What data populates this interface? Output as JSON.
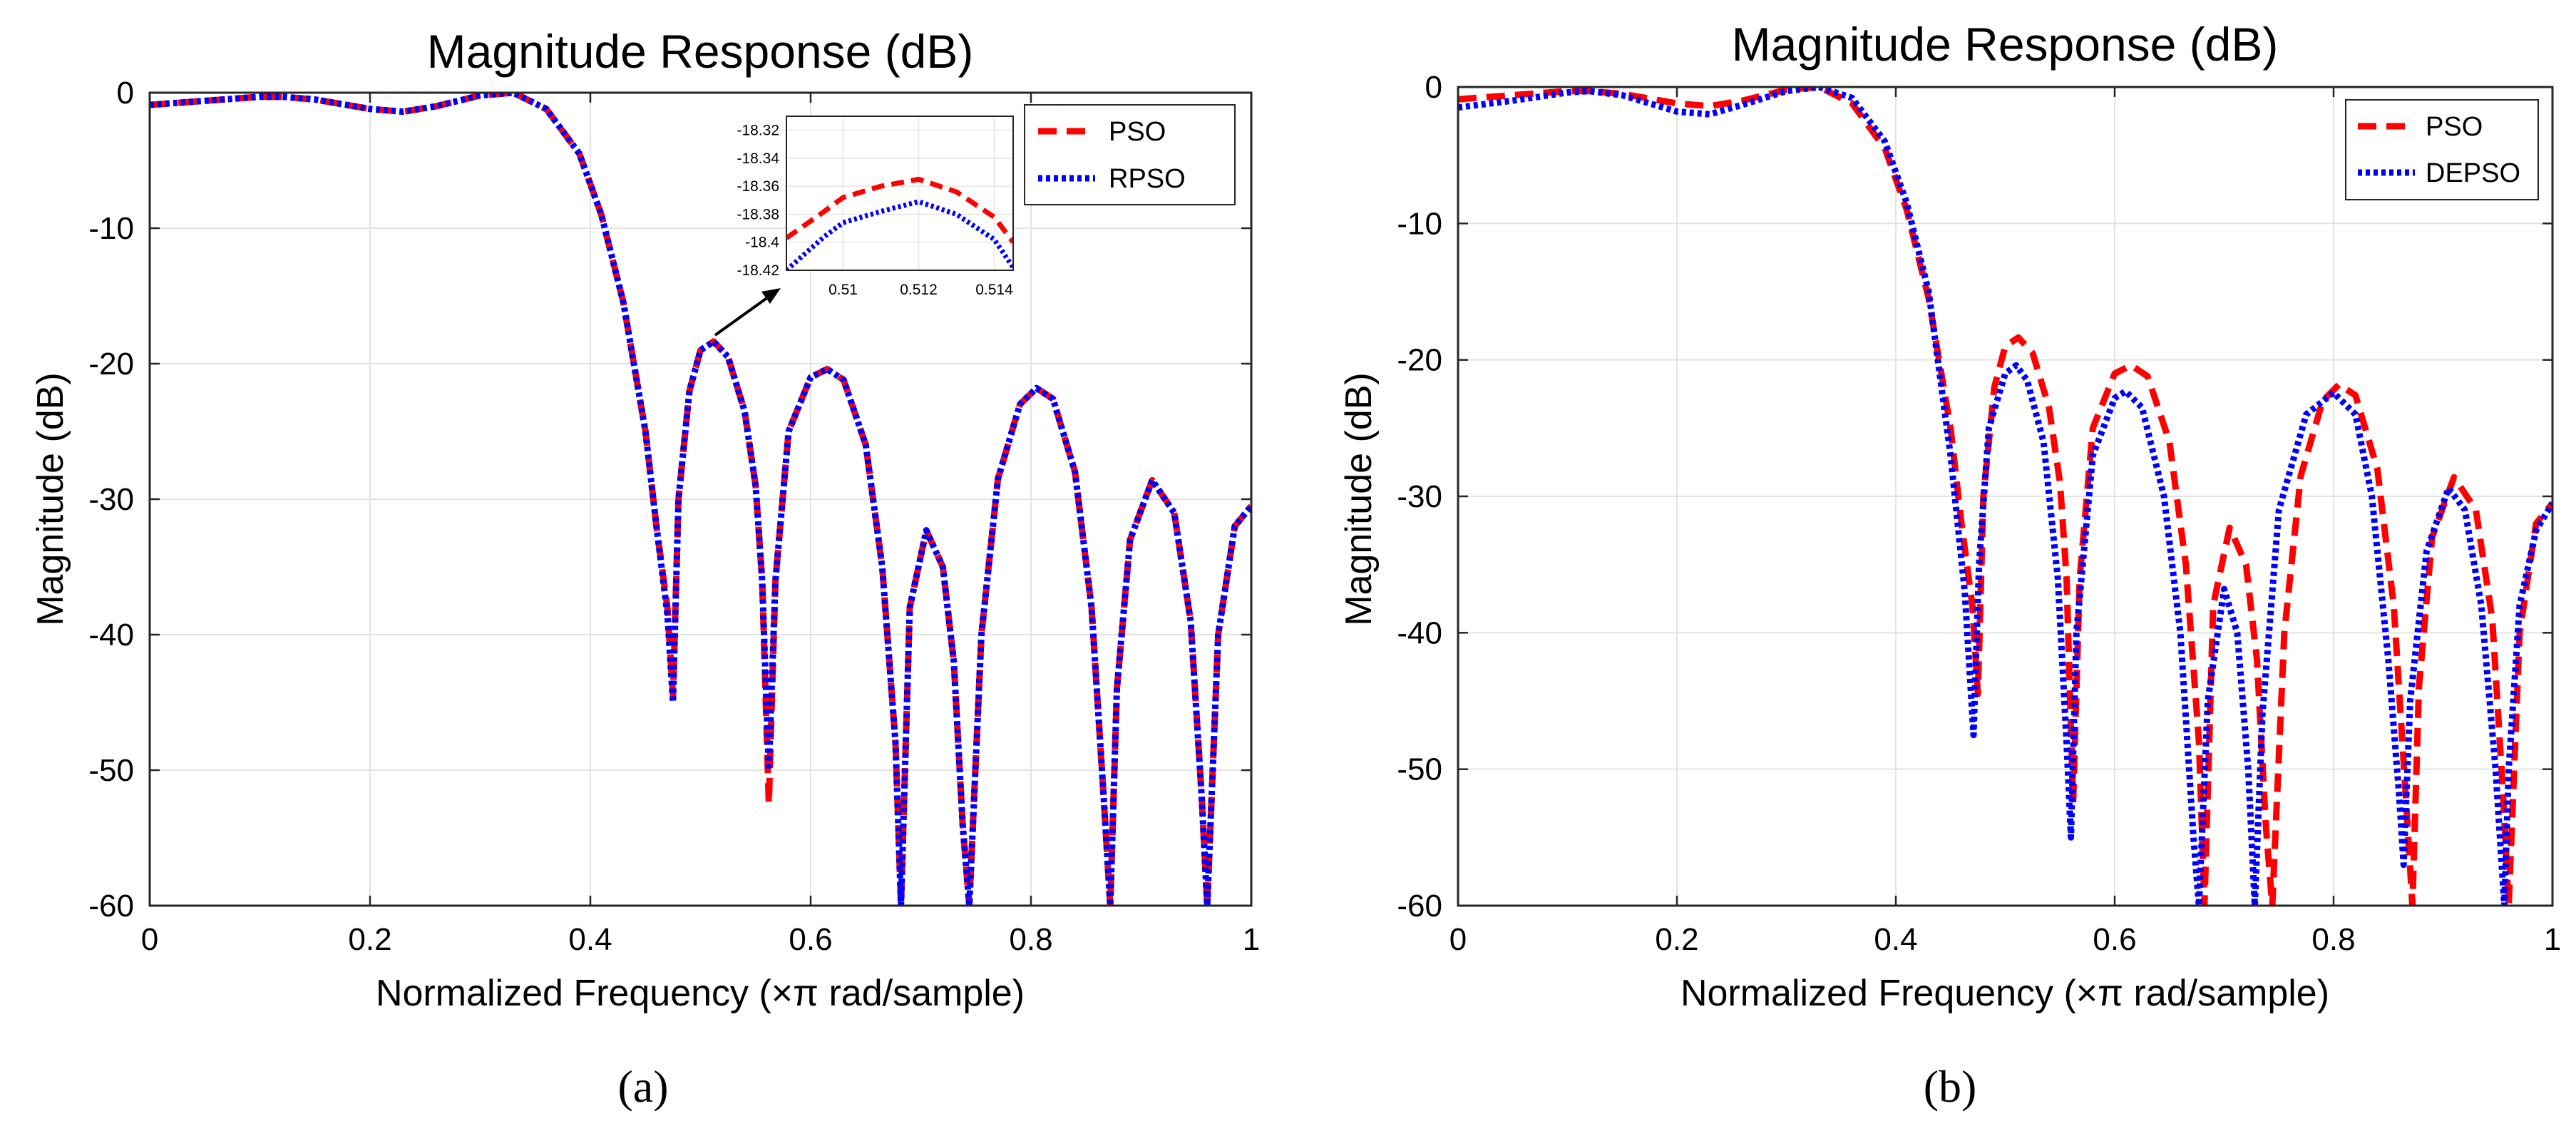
{
  "chart_data": [
    {
      "type": "line",
      "panel": "(a)",
      "title": "Magnitude Response (dB)",
      "xlabel": "Normalized Frequency (×π rad/sample)",
      "ylabel": "Magnitude (dB)",
      "xlim": [
        0,
        1
      ],
      "ylim": [
        -60,
        0
      ],
      "xticks": [
        "0",
        "0.2",
        "0.4",
        "0.6",
        "0.8",
        "1"
      ],
      "yticks": [
        "0",
        "-10",
        "-20",
        "-30",
        "-40",
        "-50",
        "-60"
      ],
      "grid": true,
      "legend_position": "top-right",
      "series": [
        {
          "name": "PSO",
          "color": "#ff0000",
          "style": "dashed",
          "x": [
            0,
            0.05,
            0.1,
            0.12,
            0.15,
            0.2,
            0.23,
            0.26,
            0.3,
            0.33,
            0.36,
            0.39,
            0.41,
            0.43,
            0.45,
            0.46,
            0.47,
            0.475,
            0.48,
            0.49,
            0.5,
            0.512,
            0.525,
            0.54,
            0.55,
            0.556,
            0.562,
            0.568,
            0.58,
            0.6,
            0.615,
            0.63,
            0.65,
            0.665,
            0.677,
            0.682,
            0.69,
            0.705,
            0.72,
            0.73,
            0.738,
            0.744,
            0.755,
            0.77,
            0.79,
            0.805,
            0.82,
            0.84,
            0.855,
            0.866,
            0.872,
            0.878,
            0.89,
            0.91,
            0.93,
            0.945,
            0.955,
            0.96,
            0.97,
            0.985,
            1.0
          ],
          "y": [
            -0.9,
            -0.6,
            -0.3,
            -0.3,
            -0.5,
            -1.2,
            -1.4,
            -1.0,
            -0.2,
            0.0,
            -1.2,
            -4.5,
            -9.0,
            -15.5,
            -25.0,
            -32.0,
            -38.0,
            -44.5,
            -30.0,
            -22.0,
            -19.0,
            -18.36,
            -19.5,
            -23.5,
            -29.0,
            -36.0,
            -52.5,
            -36.0,
            -25.0,
            -21.0,
            -20.4,
            -21.2,
            -26.0,
            -35.0,
            -48.0,
            -60.0,
            -38.0,
            -32.3,
            -35.0,
            -42.0,
            -54.0,
            -60.0,
            -40.0,
            -28.5,
            -23.0,
            -21.8,
            -22.6,
            -28.0,
            -38.0,
            -52.0,
            -60.0,
            -44.0,
            -33.0,
            -28.6,
            -31.0,
            -39.0,
            -52.0,
            -60.0,
            -40.0,
            -32.0,
            -30.5
          ]
        },
        {
          "name": "RPSO",
          "color": "#0000ff",
          "style": "dotted",
          "x": [
            0,
            0.05,
            0.1,
            0.12,
            0.15,
            0.2,
            0.23,
            0.26,
            0.3,
            0.33,
            0.36,
            0.39,
            0.41,
            0.43,
            0.45,
            0.46,
            0.47,
            0.475,
            0.48,
            0.49,
            0.5,
            0.512,
            0.525,
            0.54,
            0.55,
            0.556,
            0.562,
            0.568,
            0.58,
            0.6,
            0.615,
            0.63,
            0.65,
            0.665,
            0.677,
            0.682,
            0.69,
            0.705,
            0.72,
            0.73,
            0.738,
            0.744,
            0.755,
            0.77,
            0.79,
            0.805,
            0.82,
            0.84,
            0.855,
            0.866,
            0.872,
            0.878,
            0.89,
            0.91,
            0.93,
            0.945,
            0.955,
            0.96,
            0.97,
            0.985,
            1.0
          ],
          "y": [
            -0.9,
            -0.6,
            -0.3,
            -0.3,
            -0.5,
            -1.2,
            -1.4,
            -1.0,
            -0.2,
            0.0,
            -1.2,
            -4.5,
            -9.0,
            -15.5,
            -25.0,
            -32.0,
            -38.5,
            -45.0,
            -30.0,
            -22.0,
            -19.0,
            -18.37,
            -19.5,
            -23.5,
            -29.0,
            -36.0,
            -50.0,
            -36.0,
            -25.0,
            -21.0,
            -20.4,
            -21.2,
            -26.0,
            -35.0,
            -48.0,
            -60.0,
            -38.0,
            -32.3,
            -35.0,
            -42.0,
            -54.0,
            -60.0,
            -40.0,
            -28.5,
            -23.0,
            -21.8,
            -22.6,
            -28.0,
            -38.0,
            -52.0,
            -60.0,
            -44.0,
            -33.0,
            -28.6,
            -31.0,
            -39.0,
            -52.0,
            -60.0,
            -40.0,
            -32.0,
            -30.5
          ]
        }
      ],
      "inset": {
        "xlim": [
          0.5085,
          0.5145
        ],
        "ylim": [
          -18.42,
          -18.31
        ],
        "xticks": [
          "0.51",
          "0.512",
          "0.514"
        ],
        "yticks": [
          "-18.32",
          "-18.34",
          "-18.36",
          "-18.38",
          "-18.4",
          "-18.42"
        ],
        "series": [
          {
            "name": "PSO",
            "x": [
              0.5085,
              0.5095,
              0.51,
              0.511,
              0.512,
              0.513,
              0.514,
              0.5145
            ],
            "y": [
              -18.397,
              -18.378,
              -18.368,
              -18.36,
              -18.355,
              -18.364,
              -18.382,
              -18.4
            ]
          },
          {
            "name": "RPSO",
            "x": [
              0.5085,
              0.5095,
              0.51,
              0.511,
              0.512,
              0.513,
              0.514,
              0.5145
            ],
            "y": [
              -18.42,
              -18.396,
              -18.386,
              -18.378,
              -18.371,
              -18.38,
              -18.398,
              -18.418
            ]
          }
        ]
      }
    },
    {
      "type": "line",
      "panel": "(b)",
      "title": "Magnitude Response (dB)",
      "xlabel": "Normalized Frequency (×π rad/sample)",
      "ylabel": "Magnitude (dB)",
      "xlim": [
        0,
        1
      ],
      "ylim": [
        -60,
        0
      ],
      "xticks": [
        "0",
        "0.2",
        "0.4",
        "0.6",
        "0.8",
        "1"
      ],
      "yticks": [
        "0",
        "-10",
        "-20",
        "-30",
        "-40",
        "-50",
        "-60"
      ],
      "grid": true,
      "legend_position": "top-right",
      "series": [
        {
          "name": "PSO",
          "color": "#ff0000",
          "style": "dashed",
          "x": [
            0,
            0.05,
            0.1,
            0.12,
            0.15,
            0.2,
            0.23,
            0.26,
            0.3,
            0.33,
            0.36,
            0.39,
            0.41,
            0.43,
            0.45,
            0.46,
            0.47,
            0.475,
            0.48,
            0.49,
            0.5,
            0.512,
            0.525,
            0.54,
            0.55,
            0.556,
            0.562,
            0.568,
            0.58,
            0.6,
            0.615,
            0.63,
            0.65,
            0.665,
            0.677,
            0.682,
            0.69,
            0.705,
            0.72,
            0.73,
            0.738,
            0.744,
            0.755,
            0.77,
            0.79,
            0.805,
            0.82,
            0.84,
            0.855,
            0.866,
            0.872,
            0.878,
            0.89,
            0.91,
            0.93,
            0.945,
            0.955,
            0.96,
            0.97,
            0.985,
            1.0
          ],
          "y": [
            -0.9,
            -0.6,
            -0.3,
            -0.3,
            -0.5,
            -1.2,
            -1.4,
            -1.0,
            -0.2,
            0.0,
            -1.2,
            -4.5,
            -9.0,
            -15.5,
            -25.0,
            -32.0,
            -38.0,
            -44.5,
            -30.0,
            -22.0,
            -19.0,
            -18.36,
            -19.5,
            -23.5,
            -29.0,
            -36.0,
            -52.5,
            -36.0,
            -25.0,
            -21.0,
            -20.4,
            -21.2,
            -26.0,
            -35.0,
            -48.0,
            -60.0,
            -38.0,
            -32.3,
            -35.0,
            -42.0,
            -54.0,
            -60.0,
            -40.0,
            -28.5,
            -23.0,
            -21.8,
            -22.6,
            -28.0,
            -38.0,
            -52.0,
            -60.0,
            -44.0,
            -33.0,
            -28.6,
            -31.0,
            -39.0,
            -52.0,
            -60.0,
            -40.0,
            -32.0,
            -30.5
          ]
        },
        {
          "name": "DEPSO",
          "color": "#0000ff",
          "style": "dotted",
          "x": [
            0,
            0.05,
            0.1,
            0.12,
            0.15,
            0.2,
            0.23,
            0.26,
            0.3,
            0.33,
            0.36,
            0.39,
            0.41,
            0.43,
            0.45,
            0.463,
            0.471,
            0.476,
            0.485,
            0.5,
            0.51,
            0.52,
            0.535,
            0.548,
            0.556,
            0.56,
            0.565,
            0.58,
            0.6,
            0.61,
            0.625,
            0.645,
            0.66,
            0.672,
            0.677,
            0.685,
            0.7,
            0.712,
            0.722,
            0.728,
            0.735,
            0.75,
            0.775,
            0.8,
            0.82,
            0.835,
            0.85,
            0.86,
            0.864,
            0.87,
            0.885,
            0.905,
            0.92,
            0.935,
            0.948,
            0.956,
            0.96,
            0.97,
            0.985,
            1.0
          ],
          "y": [
            -1.5,
            -1.0,
            -0.4,
            -0.3,
            -0.6,
            -1.8,
            -2.0,
            -1.3,
            -0.3,
            0.0,
            -0.8,
            -4.0,
            -8.5,
            -15.0,
            -27.0,
            -37.0,
            -47.5,
            -35.0,
            -25.0,
            -21.0,
            -20.4,
            -21.5,
            -26.0,
            -36.0,
            -48.0,
            -55.0,
            -40.0,
            -27.0,
            -22.8,
            -22.3,
            -23.5,
            -30.0,
            -40.0,
            -55.0,
            -60.0,
            -45.0,
            -36.8,
            -40.0,
            -50.0,
            -60.0,
            -46.0,
            -31.0,
            -24.0,
            -22.4,
            -24.0,
            -30.0,
            -42.0,
            -52.0,
            -57.0,
            -45.0,
            -34.0,
            -29.4,
            -31.0,
            -38.0,
            -50.0,
            -60.0,
            -50.0,
            -38.0,
            -32.5,
            -30.5
          ]
        }
      ]
    }
  ],
  "captions": [
    "(a)",
    "(b)"
  ]
}
